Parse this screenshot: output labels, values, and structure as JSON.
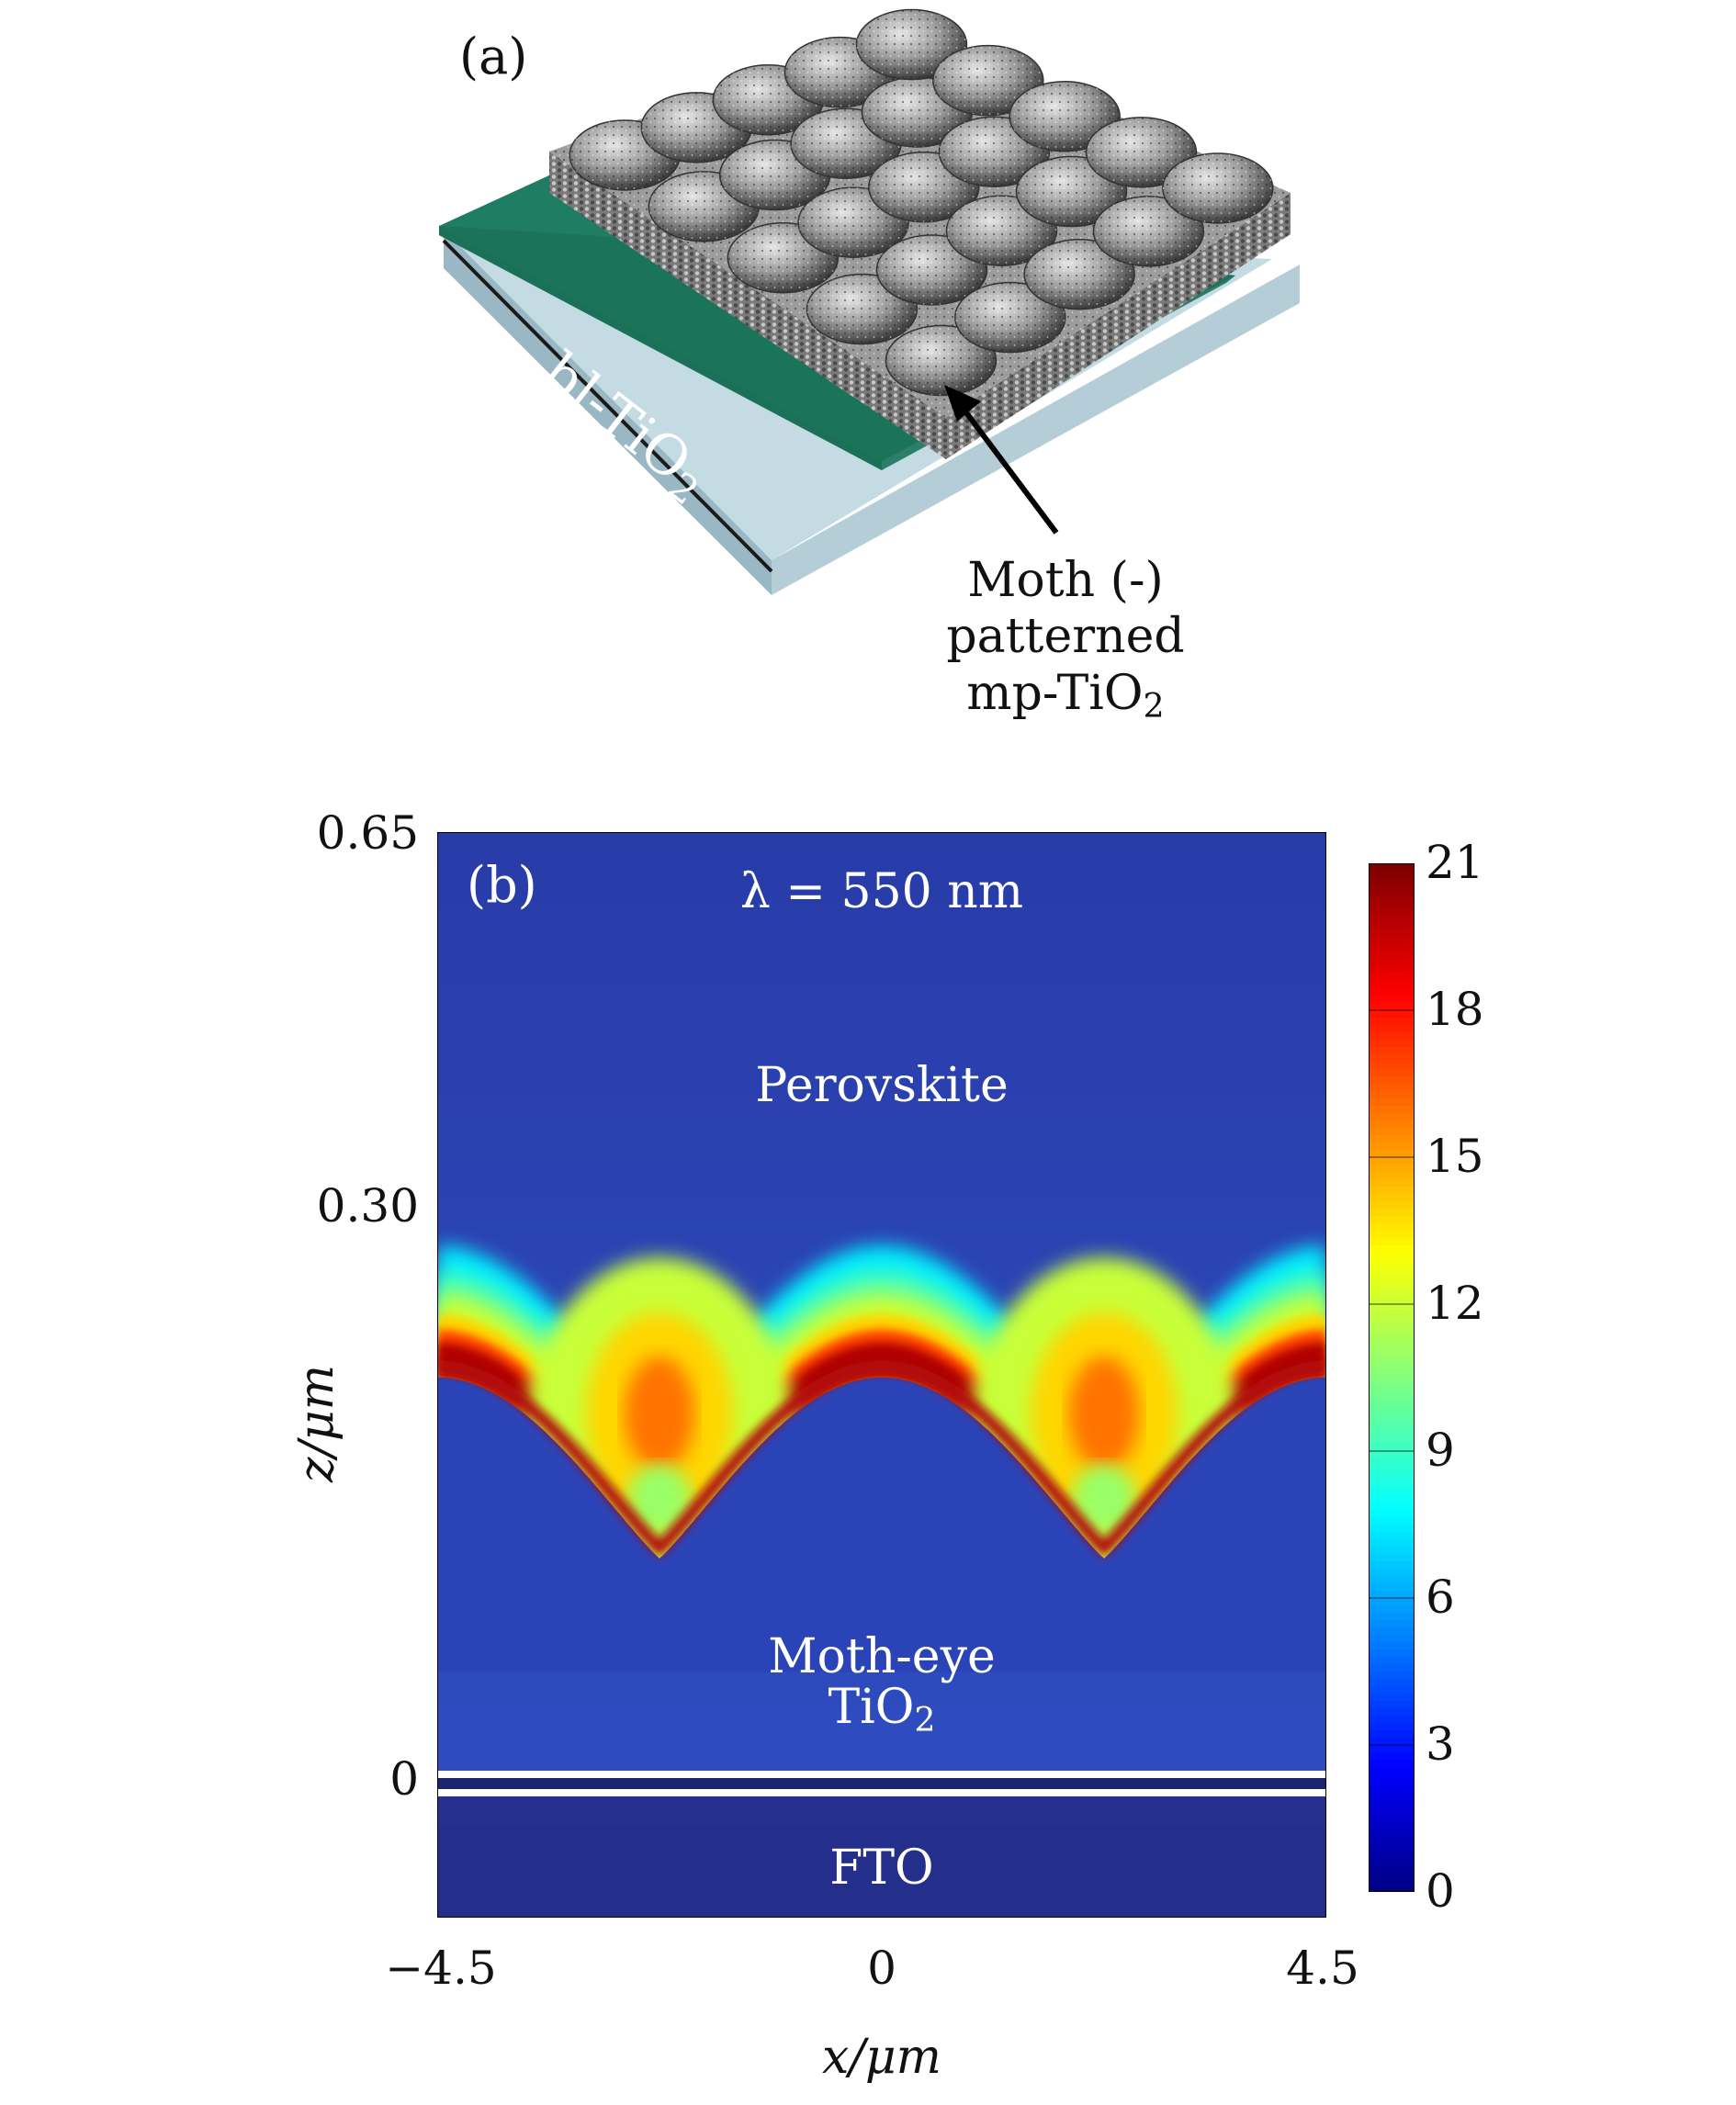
{
  "panel_a": {
    "label": "(a)",
    "layer_label_main": "bl-TiO",
    "layer_label_sub": "2",
    "callout_line1": "Moth (-)",
    "callout_line2": "patterned",
    "callout_line3_main": "mp-TiO",
    "callout_line3_sub": "2",
    "colors": {
      "substrate": "#a9c6d2",
      "blocking_layer": "#1e7d62",
      "mesoporous": "#8c8c8c"
    }
  },
  "panel_b": {
    "label": "(b)",
    "wavelength_label": "λ = 550 nm",
    "region_top": "Perovskite",
    "region_middle_line1": "Moth-eye",
    "region_middle_line2_main": "TiO",
    "region_middle_line2_sub": "2",
    "region_bottom": "FTO",
    "x_axis_label": "x/μm",
    "z_axis_label": "z/μm",
    "x_ticks": [
      "−4.5",
      "0",
      "4.5"
    ],
    "z_ticks": [
      "0.65",
      "0.30",
      "0"
    ],
    "colorbar_ticks": [
      "21",
      "18",
      "15",
      "12",
      "9",
      "6",
      "3",
      "0"
    ]
  },
  "chart_data": {
    "type": "heatmap",
    "xlabel": "x/μm",
    "ylabel": "z/μm",
    "xlim": [
      -4.5,
      4.5
    ],
    "x_ticks": [
      -4.5,
      0,
      4.5
    ],
    "z_ticks": [
      0.65,
      0.3,
      0
    ],
    "colorbar": {
      "min": 0,
      "max": 21,
      "ticks": [
        0,
        3,
        6,
        9,
        12,
        15,
        18,
        21
      ],
      "colormap": "jet"
    },
    "annotation": "λ = 550 nm",
    "regions": [
      "Perovskite",
      "Moth-eye TiO2",
      "FTO"
    ],
    "field_profile": {
      "interface_z_at_bumps": 0.24,
      "interface_z_at_valleys": 0.1,
      "bump_x": [
        -4.5,
        0,
        4.5
      ],
      "valley_x": [
        -2.25,
        2.25
      ],
      "peak_intensity_x": [
        -2.25,
        2.25
      ],
      "peak_intensity_z": 0.2,
      "peak_intensity_value": 16,
      "interface_intensity_value": 20,
      "perovskite_bulk_value": 3,
      "tio2_bulk_value": 2
    }
  }
}
